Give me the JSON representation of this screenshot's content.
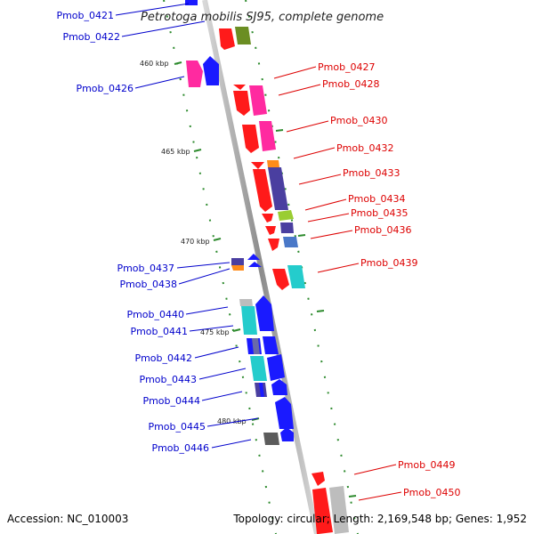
{
  "title": "Petrotoga mobilis SJ95, complete genome",
  "footer": {
    "accession": "Accession: NC_010003",
    "topology": "Topology: circular; Length: 2,169,548 bp; Genes: 1,952"
  },
  "scale_labels": [
    "460 kbp",
    "465 kbp",
    "470 kbp",
    "475 kbp",
    "480 kbp"
  ],
  "colors": {
    "reverse_strand_label": "#0000cc",
    "forward_strand_label": "#dd0000",
    "backbone": "#a8a8a8",
    "tick": "#2e8b2e"
  },
  "left_genes": [
    "Pmob_0421",
    "Pmob_0422",
    "Pmob_0426",
    "Pmob_0437",
    "Pmob_0438",
    "Pmob_0440",
    "Pmob_0441",
    "Pmob_0442",
    "Pmob_0443",
    "Pmob_0444",
    "Pmob_0445",
    "Pmob_0446"
  ],
  "right_genes": [
    "Pmob_0427",
    "Pmob_0428",
    "Pmob_0430",
    "Pmob_0432",
    "Pmob_0433",
    "Pmob_0434",
    "Pmob_0435",
    "Pmob_0436",
    "Pmob_0439",
    "Pmob_0449",
    "Pmob_0450"
  ]
}
